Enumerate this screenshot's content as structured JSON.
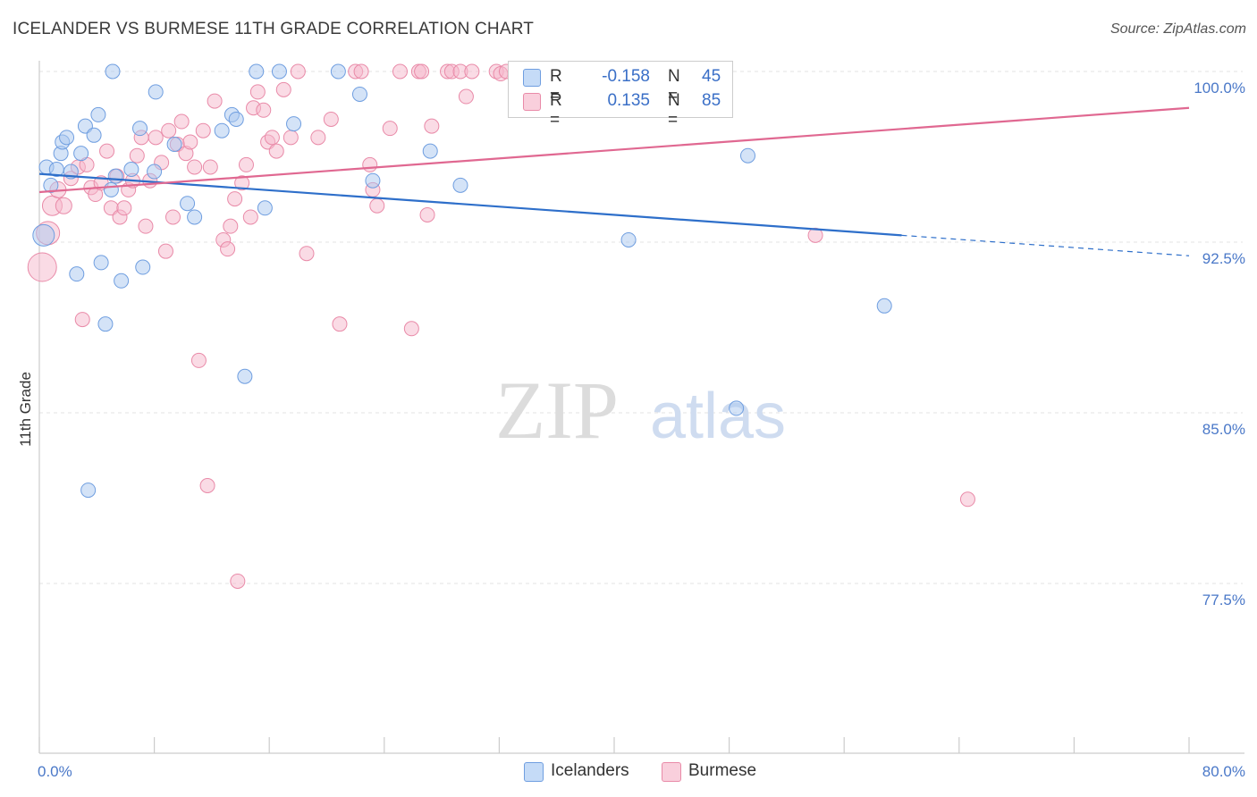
{
  "header": {
    "title": "ICELANDER VS BURMESE 11TH GRADE CORRELATION CHART",
    "source": "Source: ZipAtlas.com"
  },
  "watermark": {
    "zip": "ZIP",
    "atlas": "atlas"
  },
  "colors": {
    "blue_fill": "#aac8f0",
    "blue_stroke": "#6f9ee0",
    "blue_line": "#2e6fca",
    "pink_fill": "#f6b8cc",
    "pink_stroke": "#e98aa8",
    "pink_line": "#e06891",
    "tick_text": "#4a78c8",
    "grid": "#e3e3e3"
  },
  "legend": {
    "rows": [
      {
        "r_label": "R =",
        "r_value": "-0.158",
        "n_label": "N =",
        "n_value": "45"
      },
      {
        "r_label": "R =",
        "r_value": "0.135",
        "n_label": "N =",
        "n_value": "85"
      }
    ],
    "series": [
      "Icelanders",
      "Burmese"
    ]
  },
  "chart_data": {
    "type": "scatter",
    "title": "ICELANDER VS BURMESE 11TH GRADE CORRELATION CHART",
    "xlabel": "",
    "ylabel": "11th Grade",
    "xlim": [
      0,
      80
    ],
    "ylim": [
      70,
      101.5
    ],
    "x_tick_labels": [
      {
        "value": 0,
        "label": "0.0%"
      },
      {
        "value": 80,
        "label": "80.0%"
      }
    ],
    "y_tick_labels": [
      {
        "value": 100,
        "label": "100.0%"
      },
      {
        "value": 92.5,
        "label": "92.5%"
      },
      {
        "value": 85,
        "label": "85.0%"
      },
      {
        "value": 77.5,
        "label": "77.5%"
      }
    ],
    "series": [
      {
        "name": "Icelanders",
        "r": -0.158,
        "n": 45,
        "trend": {
          "x0": 0,
          "y0": 95.5,
          "x1": 60,
          "y1": 92.8,
          "dash_to_x": 80,
          "dash_to_y": 91.9
        },
        "points": [
          [
            0.5,
            95.8,
            8
          ],
          [
            0.8,
            95.0,
            8
          ],
          [
            1.2,
            95.7,
            8
          ],
          [
            1.5,
            96.4,
            8
          ],
          [
            1.6,
            96.9,
            8
          ],
          [
            1.9,
            97.1,
            8
          ],
          [
            2.2,
            95.6,
            8
          ],
          [
            2.6,
            91.1,
            8
          ],
          [
            2.9,
            96.4,
            8
          ],
          [
            3.2,
            97.6,
            8
          ],
          [
            3.4,
            81.6,
            8
          ],
          [
            3.8,
            97.2,
            8
          ],
          [
            4.1,
            98.1,
            8
          ],
          [
            4.3,
            91.6,
            8
          ],
          [
            4.6,
            88.9,
            8
          ],
          [
            5.0,
            94.8,
            8
          ],
          [
            5.3,
            95.4,
            8
          ],
          [
            5.1,
            100.0,
            8
          ],
          [
            5.7,
            90.8,
            8
          ],
          [
            6.4,
            95.7,
            8
          ],
          [
            7.0,
            97.5,
            8
          ],
          [
            7.2,
            91.4,
            8
          ],
          [
            8.0,
            95.6,
            8
          ],
          [
            8.1,
            99.1,
            8
          ],
          [
            9.4,
            96.8,
            8
          ],
          [
            10.3,
            94.2,
            8
          ],
          [
            10.8,
            93.6,
            8
          ],
          [
            12.7,
            97.4,
            8
          ],
          [
            13.4,
            98.1,
            8
          ],
          [
            13.7,
            97.9,
            8
          ],
          [
            14.3,
            86.6,
            8
          ],
          [
            15.1,
            100.0,
            8
          ],
          [
            15.7,
            94.0,
            8
          ],
          [
            16.7,
            100.0,
            8
          ],
          [
            17.7,
            97.7,
            8
          ],
          [
            20.8,
            100.0,
            8
          ],
          [
            22.3,
            99.0,
            8
          ],
          [
            23.2,
            95.2,
            8
          ],
          [
            27.2,
            96.5,
            8
          ],
          [
            29.3,
            95.0,
            8
          ],
          [
            41.0,
            92.6,
            8
          ],
          [
            48.5,
            85.2,
            8
          ],
          [
            49.3,
            96.3,
            8
          ],
          [
            58.8,
            89.7,
            8
          ],
          [
            0.3,
            92.8,
            12
          ]
        ]
      },
      {
        "name": "Burmese",
        "r": 0.135,
        "n": 85,
        "trend": {
          "x0": 0,
          "y0": 94.7,
          "x1": 80,
          "y1": 98.4
        },
        "points": [
          [
            0.2,
            91.4,
            16
          ],
          [
            0.6,
            92.9,
            13
          ],
          [
            0.9,
            94.1,
            11
          ],
          [
            1.3,
            94.8,
            9
          ],
          [
            1.7,
            94.1,
            9
          ],
          [
            2.2,
            95.3,
            8
          ],
          [
            2.7,
            95.8,
            8
          ],
          [
            3.0,
            89.1,
            8
          ],
          [
            3.3,
            95.9,
            8
          ],
          [
            3.6,
            94.9,
            8
          ],
          [
            3.9,
            94.6,
            8
          ],
          [
            4.3,
            95.1,
            8
          ],
          [
            4.7,
            96.5,
            8
          ],
          [
            5.0,
            94.0,
            8
          ],
          [
            5.4,
            95.4,
            8
          ],
          [
            5.6,
            93.6,
            8
          ],
          [
            5.9,
            94.0,
            8
          ],
          [
            6.2,
            94.8,
            8
          ],
          [
            6.5,
            95.2,
            8
          ],
          [
            6.8,
            96.3,
            8
          ],
          [
            7.1,
            97.1,
            8
          ],
          [
            7.4,
            93.2,
            8
          ],
          [
            7.7,
            95.2,
            8
          ],
          [
            8.1,
            97.1,
            8
          ],
          [
            8.5,
            96.0,
            8
          ],
          [
            8.8,
            92.1,
            8
          ],
          [
            9.0,
            97.4,
            8
          ],
          [
            9.3,
            93.6,
            8
          ],
          [
            9.6,
            96.8,
            8
          ],
          [
            9.9,
            97.8,
            8
          ],
          [
            10.2,
            96.4,
            8
          ],
          [
            10.5,
            96.9,
            8
          ],
          [
            10.8,
            95.8,
            8
          ],
          [
            11.1,
            87.3,
            8
          ],
          [
            11.4,
            97.4,
            8
          ],
          [
            11.7,
            81.8,
            8
          ],
          [
            11.9,
            95.8,
            8
          ],
          [
            12.2,
            98.7,
            8
          ],
          [
            12.8,
            92.6,
            8
          ],
          [
            13.1,
            92.2,
            8
          ],
          [
            13.3,
            93.2,
            8
          ],
          [
            13.6,
            94.4,
            8
          ],
          [
            13.8,
            77.6,
            8
          ],
          [
            14.1,
            95.1,
            8
          ],
          [
            14.4,
            95.9,
            8
          ],
          [
            14.7,
            93.6,
            8
          ],
          [
            14.9,
            98.4,
            8
          ],
          [
            15.2,
            99.1,
            8
          ],
          [
            15.6,
            98.3,
            8
          ],
          [
            15.9,
            96.9,
            8
          ],
          [
            16.2,
            97.1,
            8
          ],
          [
            16.5,
            96.5,
            8
          ],
          [
            17.0,
            99.2,
            8
          ],
          [
            17.5,
            97.1,
            8
          ],
          [
            18.0,
            100.0,
            8
          ],
          [
            18.6,
            92.0,
            8
          ],
          [
            19.4,
            97.1,
            8
          ],
          [
            20.3,
            97.9,
            8
          ],
          [
            20.9,
            88.9,
            8
          ],
          [
            22.0,
            100.0,
            8
          ],
          [
            22.4,
            100.0,
            8
          ],
          [
            23.0,
            95.9,
            8
          ],
          [
            23.2,
            94.8,
            8
          ],
          [
            23.5,
            94.1,
            8
          ],
          [
            24.4,
            97.5,
            8
          ],
          [
            25.1,
            100.0,
            8
          ],
          [
            25.9,
            88.7,
            8
          ],
          [
            26.4,
            100.0,
            8
          ],
          [
            26.6,
            100.0,
            8
          ],
          [
            27.0,
            93.7,
            8
          ],
          [
            27.3,
            97.6,
            8
          ],
          [
            28.4,
            100.0,
            8
          ],
          [
            28.7,
            100.0,
            8
          ],
          [
            29.3,
            100.0,
            8
          ],
          [
            30.1,
            100.0,
            8
          ],
          [
            31.8,
            100.0,
            8
          ],
          [
            32.1,
            99.9,
            8
          ],
          [
            32.5,
            100.0,
            8
          ],
          [
            34.0,
            100.0,
            8
          ],
          [
            35.2,
            100.0,
            8
          ],
          [
            36.0,
            99.9,
            8
          ],
          [
            37.0,
            99.2,
            8
          ],
          [
            54.0,
            92.8,
            8
          ],
          [
            64.6,
            81.2,
            8
          ],
          [
            29.7,
            98.9,
            8
          ]
        ]
      }
    ]
  }
}
